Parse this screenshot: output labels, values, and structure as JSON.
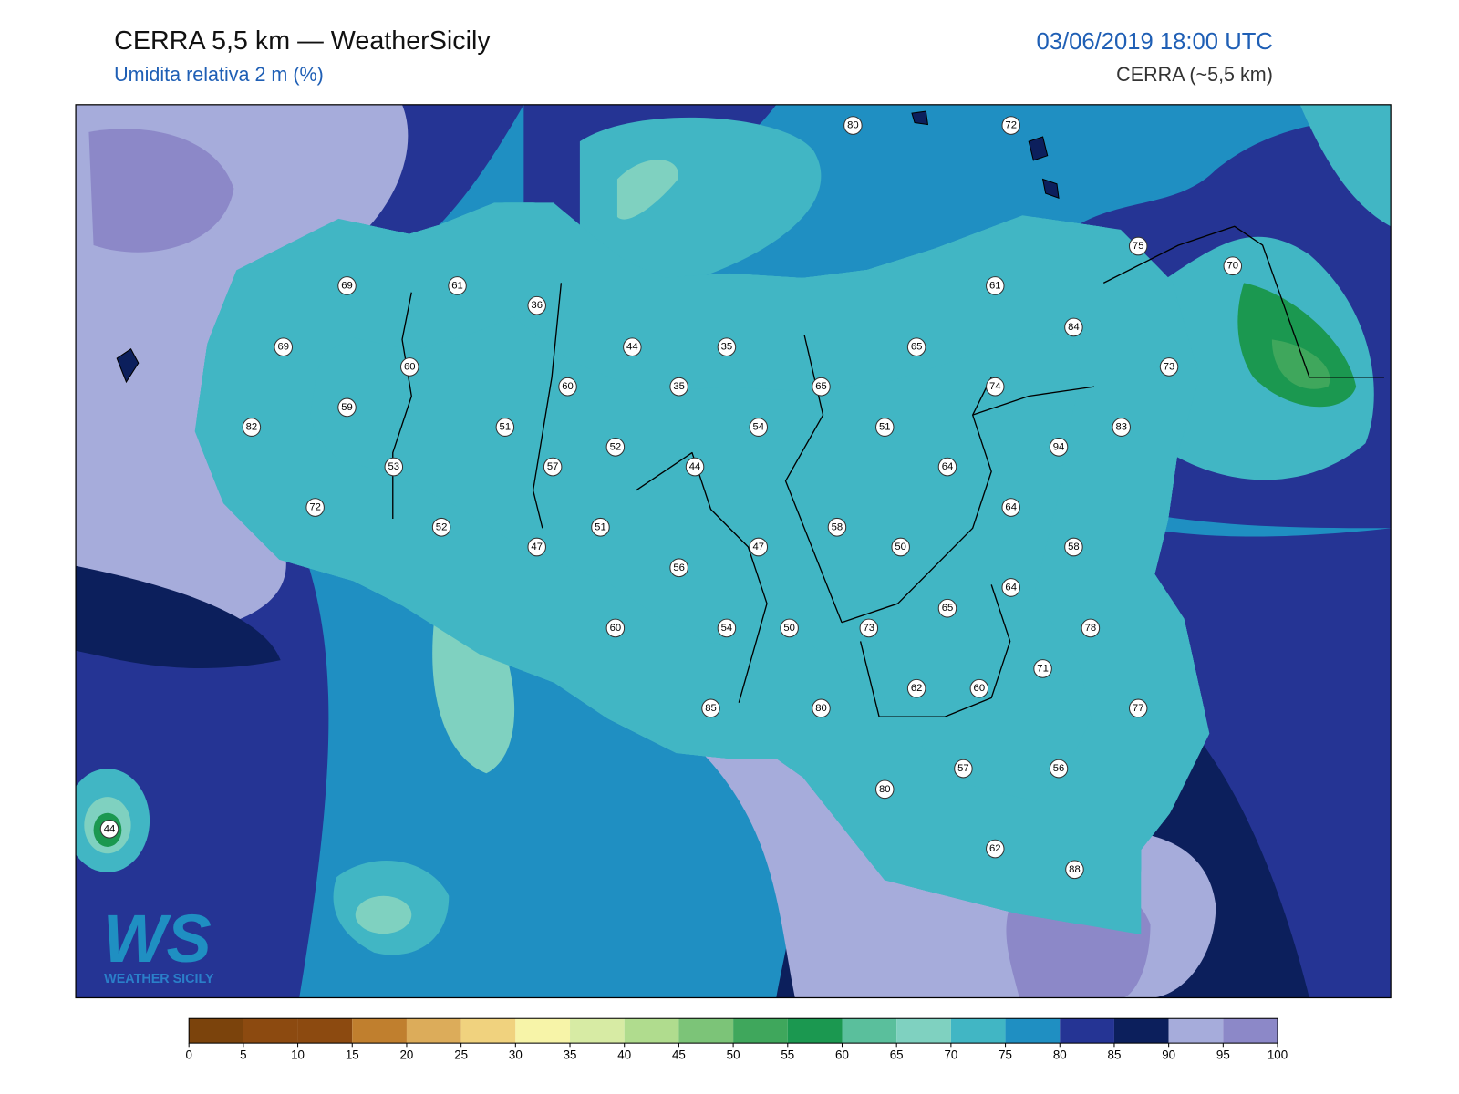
{
  "header": {
    "title": "CERRA 5,5 km — WeatherSicily",
    "subtitle": "Umidita relativa 2 m (%)",
    "datetime": "03/06/2019 18:00 UTC",
    "model": "CERRA (~5,5 km)"
  },
  "stations": [
    80,
    72,
    69,
    61,
    36,
    75,
    70,
    61,
    84,
    69,
    44,
    35,
    65,
    60,
    35,
    60,
    65,
    74,
    73,
    59,
    82,
    51,
    54,
    51,
    83,
    94,
    52,
    53,
    57,
    44,
    64,
    72,
    64,
    52,
    51,
    58,
    47,
    47,
    50,
    58,
    56,
    64,
    65,
    60,
    54,
    50,
    73,
    78,
    71,
    62,
    60,
    85,
    80,
    77,
    57,
    56,
    80,
    44,
    62,
    88
  ],
  "colorbar": {
    "ticks": [
      0,
      5,
      10,
      15,
      20,
      25,
      30,
      35,
      40,
      45,
      50,
      55,
      60,
      65,
      70,
      75,
      80,
      85,
      90,
      95,
      100
    ],
    "colors": [
      "#7b430c",
      "#8c4a10",
      "#8c4a10",
      "#c07f2e",
      "#dcac5a",
      "#f0d27e",
      "#f7f4a8",
      "#d7eba4",
      "#b0dc8e",
      "#7cc478",
      "#3fa75c",
      "#1b9850",
      "#5abf9c",
      "#7fd1c0",
      "#41b6c4",
      "#1f8fc2",
      "#253494",
      "#0c1f5c",
      "#a6acdb",
      "#8c88c8"
    ]
  },
  "logo": {
    "mark": "WS",
    "name": "WEATHER SICILY"
  }
}
